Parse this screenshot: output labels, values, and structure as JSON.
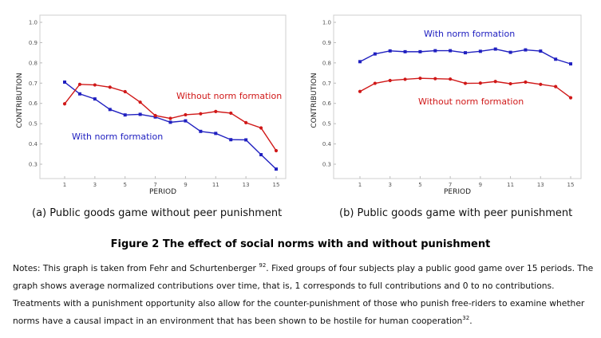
{
  "chart_data": [
    {
      "type": "line",
      "panel_caption": "(a)  Public goods game without peer punishment",
      "xlabel": "PERIOD",
      "ylabel": "CONTRIBUTION",
      "xlim": [
        0,
        16
      ],
      "ylim": [
        0.25,
        1.02
      ],
      "x_ticks": [
        1,
        3,
        5,
        7,
        9,
        11,
        13,
        15
      ],
      "y_ticks": [
        0.3,
        0.4,
        0.5,
        0.6,
        0.7,
        0.8,
        0.9,
        1.0
      ],
      "y_tick_labels": [
        "0.3",
        "0.4",
        "0.5",
        "0.6",
        "0.7",
        "0.8",
        "0.9",
        "1.0"
      ],
      "x": [
        1,
        2,
        3,
        4,
        5,
        6,
        7,
        8,
        9,
        10,
        11,
        12,
        13,
        14,
        15
      ],
      "series": [
        {
          "name": "With norm formation",
          "color": "#2020c0",
          "marker": "square",
          "values": [
            0.705,
            0.647,
            0.622,
            0.57,
            0.543,
            0.546,
            0.533,
            0.507,
            0.514,
            0.462,
            0.452,
            0.421,
            0.42,
            0.347,
            0.276
          ]
        },
        {
          "name": "Without norm formation",
          "color": "#d01818",
          "marker": "circle",
          "values": [
            0.598,
            0.694,
            0.691,
            0.68,
            0.658,
            0.606,
            0.54,
            0.526,
            0.544,
            0.549,
            0.56,
            0.552,
            0.505,
            0.479,
            0.367
          ]
        }
      ]
    },
    {
      "type": "line",
      "panel_caption": "(b)  Public goods game with peer punishment",
      "xlabel": "PERIOD",
      "ylabel": "CONTRIBUTION",
      "xlim": [
        0,
        16
      ],
      "ylim": [
        0.25,
        1.02
      ],
      "x_ticks": [
        1,
        3,
        5,
        7,
        9,
        11,
        13,
        15
      ],
      "y_ticks": [
        0.3,
        0.4,
        0.5,
        0.6,
        0.7,
        0.8,
        0.9,
        1.0
      ],
      "y_tick_labels": [
        "0.3",
        "0.4",
        "0.5",
        "0.6",
        "0.7",
        "0.8",
        "0.9",
        "1.0"
      ],
      "x": [
        1,
        2,
        3,
        4,
        5,
        6,
        7,
        8,
        9,
        10,
        11,
        12,
        13,
        14,
        15
      ],
      "series": [
        {
          "name": "With norm formation",
          "color": "#2020c0",
          "marker": "square",
          "values": [
            0.806,
            0.844,
            0.859,
            0.855,
            0.855,
            0.86,
            0.86,
            0.85,
            0.857,
            0.868,
            0.852,
            0.864,
            0.858,
            0.818,
            0.795
          ]
        },
        {
          "name": "Without norm formation",
          "color": "#d01818",
          "marker": "circle",
          "values": [
            0.659,
            0.699,
            0.713,
            0.719,
            0.724,
            0.722,
            0.72,
            0.699,
            0.7,
            0.708,
            0.697,
            0.705,
            0.694,
            0.683,
            0.628
          ]
        }
      ]
    }
  ],
  "figure_title": "Figure 2 The effect of social norms with and without punishment",
  "notes": {
    "l1a": "Notes: This graph is taken from Fehr and Schurtenberger ",
    "l1ref": "92",
    "l1b": ". Fixed groups of four subjects play a public good game over 15 periods. The",
    "l2": "graph shows average normalized contributions over time, that is, 1 corresponds to full contributions and 0 to no contributions.",
    "l3": "Treatments with a punishment opportunity also allow for the counter-punishment of those who punish free-riders to examine whether",
    "l4a": "norms have a causal impact in an environment that has been shown to be hostile for human cooperation",
    "l4ref": "32",
    "l4b": "."
  }
}
